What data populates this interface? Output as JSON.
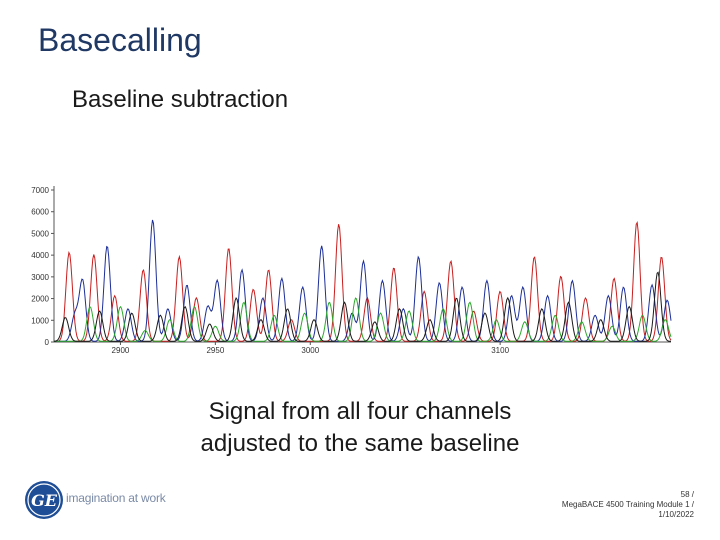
{
  "slide": {
    "title": "Basecalling",
    "subtitle": "Baseline subtraction",
    "caption_line1": "Signal from all four channels",
    "caption_line2": "adjusted to the same baseline"
  },
  "logo": {
    "text": "GE",
    "icon": "ge-monogram-logo"
  },
  "tagline": "imagination at work",
  "footer": {
    "page": "58 /",
    "course": "MegaBACE 4500 Training Module 1 /",
    "date": "1/10/2022"
  },
  "colors": {
    "title": "#1f3864",
    "logo": "#1f4e96"
  },
  "chart_data": {
    "type": "line",
    "title": "",
    "xlabel": "",
    "ylabel": "",
    "xlim": [
      2865,
      3190
    ],
    "ylim": [
      0,
      7000
    ],
    "x_ticks": [
      2900,
      2950,
      3000,
      3100
    ],
    "x_tick_labels": [
      "2900",
      "2950",
      "3000",
      "3100"
    ],
    "y_ticks": [
      0,
      1000,
      2000,
      3000,
      4000,
      5000,
      6000,
      7000
    ],
    "y_tick_labels": [
      "0",
      "1000",
      "2000",
      "3000",
      "4000",
      "5000",
      "6000",
      "7000"
    ],
    "grid": false,
    "legend": false,
    "series": [
      {
        "color": "#c81e1e",
        "peaks": [
          [
            2873,
            4100
          ],
          [
            2886,
            4000
          ],
          [
            2897,
            2100
          ],
          [
            2912,
            3300
          ],
          [
            2931,
            3900
          ],
          [
            2940,
            2000
          ],
          [
            2957,
            4300
          ],
          [
            2970,
            2400
          ],
          [
            2978,
            3300
          ],
          [
            2990,
            1000
          ],
          [
            3015,
            5400
          ],
          [
            3030,
            2000
          ],
          [
            3044,
            3400
          ],
          [
            3060,
            2300
          ],
          [
            3074,
            3700
          ],
          [
            3086,
            1400
          ],
          [
            3100,
            2300
          ],
          [
            3118,
            3900
          ],
          [
            3132,
            3000
          ],
          [
            3145,
            2000
          ],
          [
            3160,
            2900
          ],
          [
            3172,
            5500
          ],
          [
            3185,
            3900
          ]
        ]
      },
      {
        "color": "#1c2f98",
        "peaks": [
          [
            2876,
            1200
          ],
          [
            2880,
            2800
          ],
          [
            2893,
            4400
          ],
          [
            2904,
            1500
          ],
          [
            2917,
            5600
          ],
          [
            2925,
            1500
          ],
          [
            2935,
            2600
          ],
          [
            2946,
            1600
          ],
          [
            2951,
            2800
          ],
          [
            2964,
            3300
          ],
          [
            2975,
            2000
          ],
          [
            2985,
            2900
          ],
          [
            2996,
            2500
          ],
          [
            3006,
            4400
          ],
          [
            3022,
            1300
          ],
          [
            3028,
            3700
          ],
          [
            3038,
            2800
          ],
          [
            3049,
            1500
          ],
          [
            3057,
            3900
          ],
          [
            3068,
            2700
          ],
          [
            3080,
            2500
          ],
          [
            3093,
            2800
          ],
          [
            3106,
            2100
          ],
          [
            3112,
            2500
          ],
          [
            3125,
            2100
          ],
          [
            3138,
            2800
          ],
          [
            3150,
            1200
          ],
          [
            3157,
            2100
          ],
          [
            3165,
            2500
          ],
          [
            3180,
            2600
          ],
          [
            3188,
            1900
          ]
        ]
      },
      {
        "color": "#2ca82c",
        "peaks": [
          [
            2884,
            1600
          ],
          [
            2900,
            1600
          ],
          [
            2913,
            500
          ],
          [
            2926,
            1000
          ],
          [
            2939,
            1600
          ],
          [
            2950,
            700
          ],
          [
            2965,
            1800
          ],
          [
            2981,
            1200
          ],
          [
            2997,
            1300
          ],
          [
            3010,
            1800
          ],
          [
            3024,
            2000
          ],
          [
            3037,
            1300
          ],
          [
            3052,
            1400
          ],
          [
            3070,
            1500
          ],
          [
            3084,
            1800
          ],
          [
            3098,
            1000
          ],
          [
            3113,
            900
          ],
          [
            3129,
            1200
          ],
          [
            3143,
            900
          ],
          [
            3159,
            700
          ],
          [
            3175,
            1200
          ],
          [
            3187,
            1000
          ]
        ]
      },
      {
        "color": "#1a1a1a",
        "peaks": [
          [
            2871,
            1100
          ],
          [
            2889,
            1400
          ],
          [
            2906,
            1300
          ],
          [
            2921,
            1200
          ],
          [
            2934,
            1600
          ],
          [
            2947,
            800
          ],
          [
            2961,
            2000
          ],
          [
            2974,
            1000
          ],
          [
            2988,
            1500
          ],
          [
            3002,
            1000
          ],
          [
            3018,
            1800
          ],
          [
            3034,
            900
          ],
          [
            3047,
            1500
          ],
          [
            3063,
            1000
          ],
          [
            3077,
            2000
          ],
          [
            3092,
            1300
          ],
          [
            3104,
            2000
          ],
          [
            3122,
            1500
          ],
          [
            3136,
            1800
          ],
          [
            3153,
            1000
          ],
          [
            3168,
            1600
          ],
          [
            3183,
            3200
          ]
        ]
      }
    ]
  }
}
